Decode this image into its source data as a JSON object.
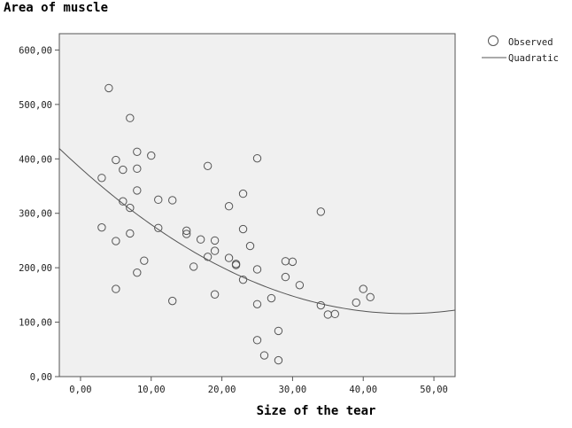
{
  "chart_data": {
    "type": "scatter",
    "title": "Area of muscle",
    "xlabel": "Size of the tear",
    "ylabel": "",
    "xlim": [
      -3,
      53
    ],
    "ylim": [
      0,
      630
    ],
    "x_ticks": [
      0,
      10,
      20,
      30,
      40,
      50
    ],
    "x_tick_labels": [
      "0,00",
      "10,00",
      "20,00",
      "30,00",
      "40,00",
      "50,00"
    ],
    "y_ticks": [
      0,
      100,
      200,
      300,
      400,
      500,
      600
    ],
    "y_tick_labels": [
      "0,00",
      "100,00",
      "200,00",
      "300,00",
      "400,00",
      "500,00",
      "600,00"
    ],
    "grid": false,
    "legend_position": "top-right",
    "series": [
      {
        "name": "Observed",
        "kind": "points",
        "points": [
          [
            3,
            365
          ],
          [
            3,
            274
          ],
          [
            4,
            530
          ],
          [
            5,
            398
          ],
          [
            5,
            249
          ],
          [
            5,
            161
          ],
          [
            6,
            380
          ],
          [
            6,
            322
          ],
          [
            7,
            475
          ],
          [
            7,
            310
          ],
          [
            7,
            263
          ],
          [
            8,
            413
          ],
          [
            8,
            382
          ],
          [
            8,
            342
          ],
          [
            8,
            191
          ],
          [
            9,
            213
          ],
          [
            10,
            406
          ],
          [
            11,
            325
          ],
          [
            11,
            273
          ],
          [
            13,
            324
          ],
          [
            13,
            139
          ],
          [
            15,
            268
          ],
          [
            15,
            262
          ],
          [
            16,
            202
          ],
          [
            17,
            252
          ],
          [
            18,
            387
          ],
          [
            18,
            220
          ],
          [
            19,
            250
          ],
          [
            19,
            231
          ],
          [
            19,
            151
          ],
          [
            21,
            313
          ],
          [
            21,
            218
          ],
          [
            22,
            207
          ],
          [
            22,
            205
          ],
          [
            23,
            336
          ],
          [
            23,
            271
          ],
          [
            23,
            178
          ],
          [
            24,
            240
          ],
          [
            25,
            401
          ],
          [
            25,
            197
          ],
          [
            25,
            133
          ],
          [
            25,
            67
          ],
          [
            26,
            39
          ],
          [
            27,
            144
          ],
          [
            28,
            84
          ],
          [
            28,
            30
          ],
          [
            29,
            212
          ],
          [
            29,
            183
          ],
          [
            30,
            211
          ],
          [
            31,
            168
          ],
          [
            34,
            303
          ],
          [
            34,
            131
          ],
          [
            35,
            114
          ],
          [
            36,
            115
          ],
          [
            39,
            136
          ],
          [
            40,
            161
          ],
          [
            41,
            146
          ]
        ]
      },
      {
        "name": "Quadratic",
        "kind": "curve",
        "points": [
          [
            -3,
            420
          ],
          [
            0,
            383
          ],
          [
            5,
            327
          ],
          [
            10,
            279
          ],
          [
            15,
            237
          ],
          [
            20,
            201
          ],
          [
            25,
            171
          ],
          [
            30,
            148
          ],
          [
            35,
            131
          ],
          [
            40,
            121
          ],
          [
            45,
            117
          ],
          [
            50,
            118
          ],
          [
            53,
            121
          ]
        ]
      }
    ],
    "colors": {
      "plot_background": "#f0f0f0",
      "frame": "#555555",
      "marker_stroke": "#555555",
      "curve": "#555555"
    }
  }
}
